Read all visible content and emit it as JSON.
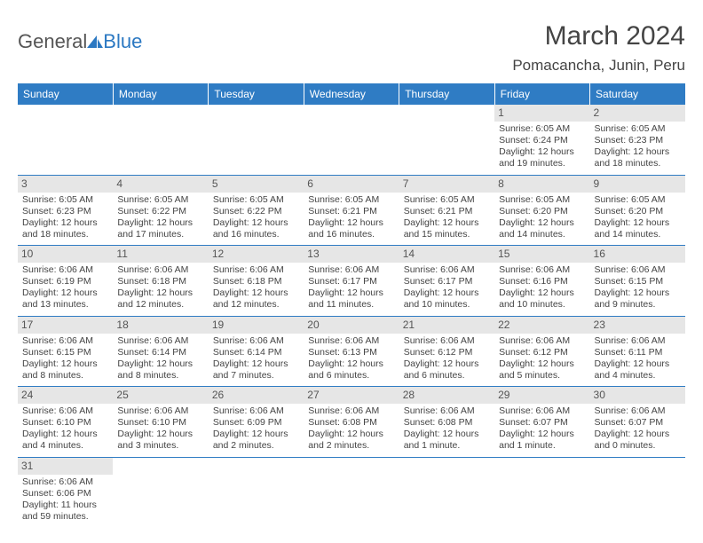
{
  "logo": {
    "text1": "General",
    "text2": "Blue",
    "icon_color": "#2b78c2"
  },
  "title": "March 2024",
  "location": "Pomacancha, Junin, Peru",
  "header_bg": "#2f7cc4",
  "daynum_bg": "#e6e6e6",
  "days_of_week": [
    "Sunday",
    "Monday",
    "Tuesday",
    "Wednesday",
    "Thursday",
    "Friday",
    "Saturday"
  ],
  "weeks": [
    [
      null,
      null,
      null,
      null,
      null,
      {
        "n": "1",
        "sunrise": "Sunrise: 6:05 AM",
        "sunset": "Sunset: 6:24 PM",
        "daylight": "Daylight: 12 hours and 19 minutes."
      },
      {
        "n": "2",
        "sunrise": "Sunrise: 6:05 AM",
        "sunset": "Sunset: 6:23 PM",
        "daylight": "Daylight: 12 hours and 18 minutes."
      }
    ],
    [
      {
        "n": "3",
        "sunrise": "Sunrise: 6:05 AM",
        "sunset": "Sunset: 6:23 PM",
        "daylight": "Daylight: 12 hours and 18 minutes."
      },
      {
        "n": "4",
        "sunrise": "Sunrise: 6:05 AM",
        "sunset": "Sunset: 6:22 PM",
        "daylight": "Daylight: 12 hours and 17 minutes."
      },
      {
        "n": "5",
        "sunrise": "Sunrise: 6:05 AM",
        "sunset": "Sunset: 6:22 PM",
        "daylight": "Daylight: 12 hours and 16 minutes."
      },
      {
        "n": "6",
        "sunrise": "Sunrise: 6:05 AM",
        "sunset": "Sunset: 6:21 PM",
        "daylight": "Daylight: 12 hours and 16 minutes."
      },
      {
        "n": "7",
        "sunrise": "Sunrise: 6:05 AM",
        "sunset": "Sunset: 6:21 PM",
        "daylight": "Daylight: 12 hours and 15 minutes."
      },
      {
        "n": "8",
        "sunrise": "Sunrise: 6:05 AM",
        "sunset": "Sunset: 6:20 PM",
        "daylight": "Daylight: 12 hours and 14 minutes."
      },
      {
        "n": "9",
        "sunrise": "Sunrise: 6:05 AM",
        "sunset": "Sunset: 6:20 PM",
        "daylight": "Daylight: 12 hours and 14 minutes."
      }
    ],
    [
      {
        "n": "10",
        "sunrise": "Sunrise: 6:06 AM",
        "sunset": "Sunset: 6:19 PM",
        "daylight": "Daylight: 12 hours and 13 minutes."
      },
      {
        "n": "11",
        "sunrise": "Sunrise: 6:06 AM",
        "sunset": "Sunset: 6:18 PM",
        "daylight": "Daylight: 12 hours and 12 minutes."
      },
      {
        "n": "12",
        "sunrise": "Sunrise: 6:06 AM",
        "sunset": "Sunset: 6:18 PM",
        "daylight": "Daylight: 12 hours and 12 minutes."
      },
      {
        "n": "13",
        "sunrise": "Sunrise: 6:06 AM",
        "sunset": "Sunset: 6:17 PM",
        "daylight": "Daylight: 12 hours and 11 minutes."
      },
      {
        "n": "14",
        "sunrise": "Sunrise: 6:06 AM",
        "sunset": "Sunset: 6:17 PM",
        "daylight": "Daylight: 12 hours and 10 minutes."
      },
      {
        "n": "15",
        "sunrise": "Sunrise: 6:06 AM",
        "sunset": "Sunset: 6:16 PM",
        "daylight": "Daylight: 12 hours and 10 minutes."
      },
      {
        "n": "16",
        "sunrise": "Sunrise: 6:06 AM",
        "sunset": "Sunset: 6:15 PM",
        "daylight": "Daylight: 12 hours and 9 minutes."
      }
    ],
    [
      {
        "n": "17",
        "sunrise": "Sunrise: 6:06 AM",
        "sunset": "Sunset: 6:15 PM",
        "daylight": "Daylight: 12 hours and 8 minutes."
      },
      {
        "n": "18",
        "sunrise": "Sunrise: 6:06 AM",
        "sunset": "Sunset: 6:14 PM",
        "daylight": "Daylight: 12 hours and 8 minutes."
      },
      {
        "n": "19",
        "sunrise": "Sunrise: 6:06 AM",
        "sunset": "Sunset: 6:14 PM",
        "daylight": "Daylight: 12 hours and 7 minutes."
      },
      {
        "n": "20",
        "sunrise": "Sunrise: 6:06 AM",
        "sunset": "Sunset: 6:13 PM",
        "daylight": "Daylight: 12 hours and 6 minutes."
      },
      {
        "n": "21",
        "sunrise": "Sunrise: 6:06 AM",
        "sunset": "Sunset: 6:12 PM",
        "daylight": "Daylight: 12 hours and 6 minutes."
      },
      {
        "n": "22",
        "sunrise": "Sunrise: 6:06 AM",
        "sunset": "Sunset: 6:12 PM",
        "daylight": "Daylight: 12 hours and 5 minutes."
      },
      {
        "n": "23",
        "sunrise": "Sunrise: 6:06 AM",
        "sunset": "Sunset: 6:11 PM",
        "daylight": "Daylight: 12 hours and 4 minutes."
      }
    ],
    [
      {
        "n": "24",
        "sunrise": "Sunrise: 6:06 AM",
        "sunset": "Sunset: 6:10 PM",
        "daylight": "Daylight: 12 hours and 4 minutes."
      },
      {
        "n": "25",
        "sunrise": "Sunrise: 6:06 AM",
        "sunset": "Sunset: 6:10 PM",
        "daylight": "Daylight: 12 hours and 3 minutes."
      },
      {
        "n": "26",
        "sunrise": "Sunrise: 6:06 AM",
        "sunset": "Sunset: 6:09 PM",
        "daylight": "Daylight: 12 hours and 2 minutes."
      },
      {
        "n": "27",
        "sunrise": "Sunrise: 6:06 AM",
        "sunset": "Sunset: 6:08 PM",
        "daylight": "Daylight: 12 hours and 2 minutes."
      },
      {
        "n": "28",
        "sunrise": "Sunrise: 6:06 AM",
        "sunset": "Sunset: 6:08 PM",
        "daylight": "Daylight: 12 hours and 1 minute."
      },
      {
        "n": "29",
        "sunrise": "Sunrise: 6:06 AM",
        "sunset": "Sunset: 6:07 PM",
        "daylight": "Daylight: 12 hours and 1 minute."
      },
      {
        "n": "30",
        "sunrise": "Sunrise: 6:06 AM",
        "sunset": "Sunset: 6:07 PM",
        "daylight": "Daylight: 12 hours and 0 minutes."
      }
    ],
    [
      {
        "n": "31",
        "sunrise": "Sunrise: 6:06 AM",
        "sunset": "Sunset: 6:06 PM",
        "daylight": "Daylight: 11 hours and 59 minutes."
      },
      null,
      null,
      null,
      null,
      null,
      null
    ]
  ]
}
